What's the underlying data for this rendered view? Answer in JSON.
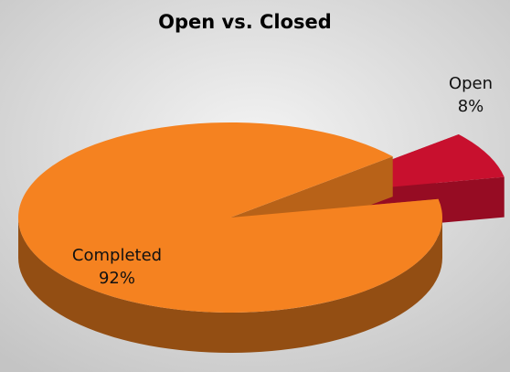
{
  "chart_data": {
    "type": "pie",
    "title": "Open vs. Closed",
    "categories": [
      "Completed",
      "Open"
    ],
    "values": [
      92,
      8
    ],
    "value_labels": [
      "92%",
      "8%"
    ],
    "colors": [
      "#f58220",
      "#c8102e"
    ],
    "legend": false
  }
}
